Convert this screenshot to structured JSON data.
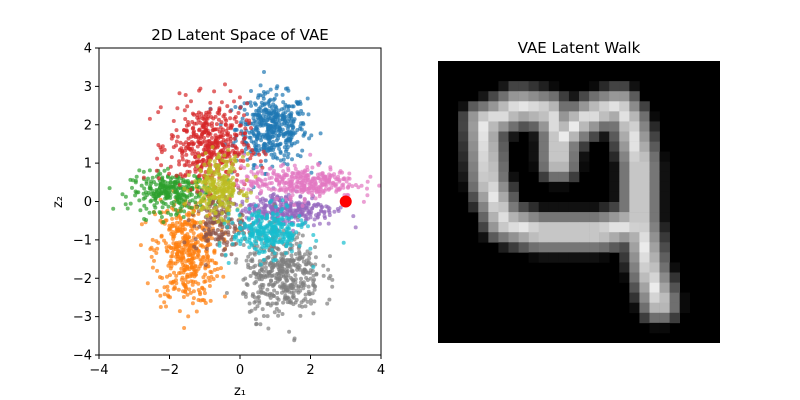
{
  "chart_data": [
    {
      "type": "scatter",
      "title": "2D Latent Space of VAE",
      "xlabel": "z₁",
      "ylabel": "z₂",
      "xlim": [
        -4,
        4
      ],
      "ylim": [
        -4,
        4
      ],
      "xticks": [
        -4,
        -2,
        0,
        2,
        4
      ],
      "yticks": [
        -4,
        -3,
        -2,
        -1,
        0,
        1,
        2,
        3,
        4
      ],
      "grid": false,
      "legend": "none",
      "series": [
        {
          "color": "#1f77b4",
          "center": [
            0.9,
            1.9
          ],
          "spread": [
            0.5,
            0.45
          ],
          "count": 450
        },
        {
          "color": "#ff7f0e",
          "center": [
            -1.5,
            -1.3
          ],
          "spread": [
            0.45,
            0.7
          ],
          "count": 450
        },
        {
          "color": "#2ca02c",
          "center": [
            -1.9,
            0.25
          ],
          "spread": [
            0.6,
            0.25
          ],
          "count": 300
        },
        {
          "color": "#d62728",
          "center": [
            -0.9,
            1.45
          ],
          "spread": [
            0.55,
            0.55
          ],
          "count": 450
        },
        {
          "color": "#9467bd",
          "center": [
            1.3,
            -0.2
          ],
          "spread": [
            0.7,
            0.22
          ],
          "count": 300
        },
        {
          "color": "#8c564b",
          "center": [
            -0.6,
            -0.6
          ],
          "spread": [
            0.35,
            0.35
          ],
          "count": 150
        },
        {
          "color": "#e377c2",
          "center": [
            1.7,
            0.5
          ],
          "spread": [
            0.8,
            0.2
          ],
          "count": 350
        },
        {
          "color": "#7f7f7f",
          "center": [
            1.2,
            -1.9
          ],
          "spread": [
            0.55,
            0.55
          ],
          "count": 450
        },
        {
          "color": "#bcbd22",
          "center": [
            -0.6,
            0.4
          ],
          "spread": [
            0.35,
            0.4
          ],
          "count": 250
        },
        {
          "color": "#17becf",
          "center": [
            0.8,
            -0.8
          ],
          "spread": [
            0.5,
            0.3
          ],
          "count": 300
        }
      ],
      "highlight_point": {
        "x": 3.0,
        "y": 0.0,
        "color": "#ff0000"
      }
    },
    {
      "type": "heatmap",
      "title": "VAE Latent Walk",
      "colormap": "gray",
      "rows": 28,
      "cols": 28,
      "description_glyph": "4"
    }
  ]
}
